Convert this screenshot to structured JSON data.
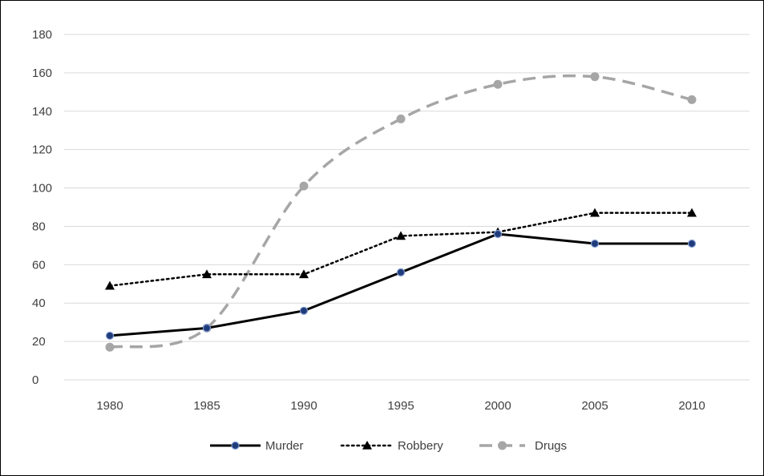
{
  "chart_data": {
    "type": "line",
    "title": "",
    "xlabel": "",
    "ylabel": "",
    "categories": [
      "1980",
      "1985",
      "1990",
      "1995",
      "2000",
      "2005",
      "2010"
    ],
    "ylim": [
      0,
      180
    ],
    "yticks": [
      0,
      20,
      40,
      60,
      80,
      100,
      120,
      140,
      160,
      180
    ],
    "grid": true,
    "legend_position": "bottom",
    "series": [
      {
        "name": "Murder",
        "values": [
          23,
          27,
          36,
          56,
          76,
          71,
          71
        ],
        "line_color": "#000000",
        "marker_color": "#1f3b7a",
        "line_style": "solid",
        "marker": "circle"
      },
      {
        "name": "Robbery",
        "values": [
          49,
          55,
          55,
          75,
          77,
          87,
          87
        ],
        "line_color": "#000000",
        "marker_color": "#000000",
        "line_style": "dotted",
        "marker": "triangle"
      },
      {
        "name": "Drugs",
        "values": [
          17,
          27,
          101,
          136,
          154,
          158,
          146
        ],
        "line_color": "#a6a6a6",
        "marker_color": "#a6a6a6",
        "line_style": "dashed",
        "marker": "circle"
      }
    ]
  }
}
